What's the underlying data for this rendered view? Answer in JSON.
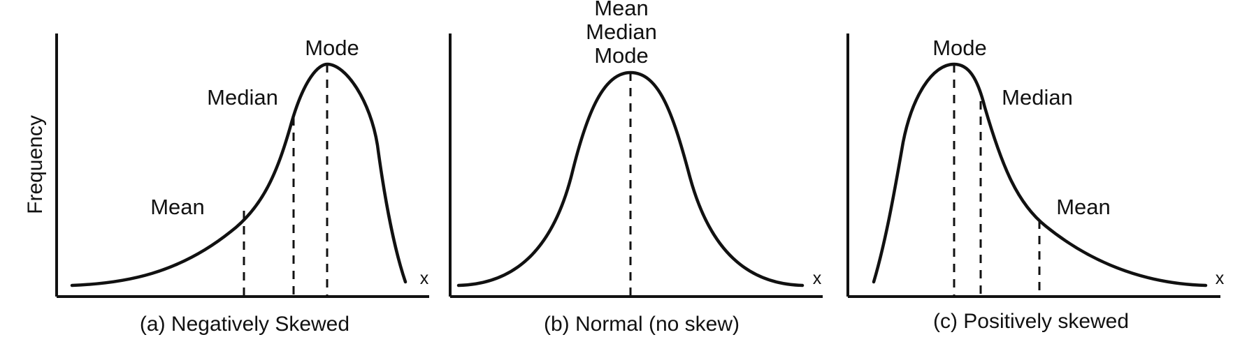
{
  "figure": {
    "y_axis_label": "Frequency",
    "x_axis_symbol": "x",
    "panels": [
      {
        "caption": "(a) Negatively Skewed",
        "labels": {
          "mode": "Mode",
          "median": "Median",
          "mean": "Mean"
        }
      },
      {
        "caption": "(b) Normal (no skew)",
        "labels": {
          "mean": "Mean",
          "median": "Median",
          "mode": "Mode"
        }
      },
      {
        "caption": "(c) Positively skewed",
        "labels": {
          "mode": "Mode",
          "median": "Median",
          "mean": "Mean"
        }
      }
    ]
  }
}
